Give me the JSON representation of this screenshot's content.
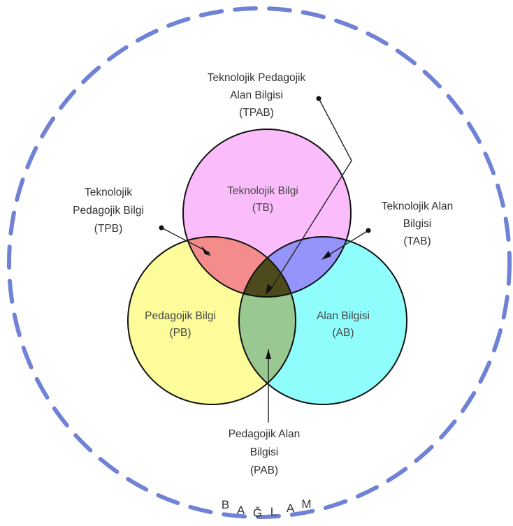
{
  "colors": {
    "context_ring": "#6f82d6",
    "technology_circle": "#fbbcfb",
    "pedagogy_circle": "#fdfc9a",
    "content_circle": "#90fdfd",
    "tpb_region": "#f48c8c",
    "tab_region": "#9494fb",
    "pab_region": "#99c890",
    "tpab_region": "#4d4a1c",
    "outline": "#111111"
  },
  "circles": {
    "technology": {
      "label_line1": "Teknolojik Bilgi",
      "label_line2": "(TB)"
    },
    "pedagogy": {
      "label_line1": "Pedagojik Bilgi",
      "label_line2": "(PB)"
    },
    "content": {
      "label_line1": "Alan Bilgisi",
      "label_line2": "(AB)"
    }
  },
  "callouts": {
    "tpab": {
      "line1": "Teknolojik Pedagojik",
      "line2": "Alan Bilgisi",
      "line3": "(TPAB)"
    },
    "tpb": {
      "line1": "Teknolojik",
      "line2": "Pedagojik Bilgi",
      "line3": "(TPB)"
    },
    "tab": {
      "line1": "Teknolojik Alan",
      "line2": "Bilgisi",
      "line3": "(TAB)"
    },
    "pab": {
      "line1": "Pedagojik Alan",
      "line2": "Bilgisi",
      "line3": "(PAB)"
    }
  },
  "context": {
    "letters": [
      "B",
      "A",
      "Ğ",
      "L",
      "A",
      "M"
    ]
  }
}
